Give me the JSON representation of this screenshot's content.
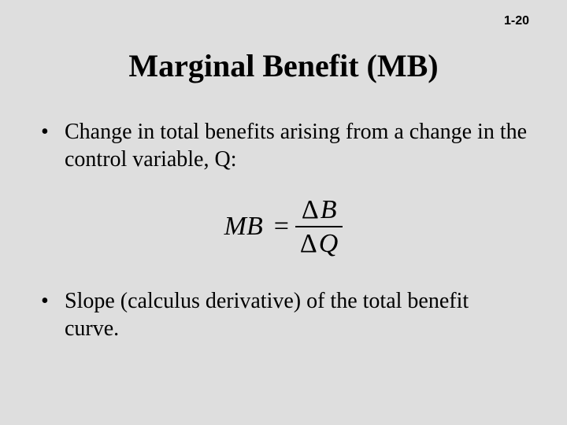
{
  "page_number": "1-20",
  "title": "Marginal Benefit (MB)",
  "bullets": [
    "Change in total benefits arising from a change in the control variable, Q:",
    "Slope (calculus derivative) of the total benefit curve."
  ],
  "formula": {
    "lhs": "MB",
    "eq": "=",
    "numerator_delta": "Δ",
    "numerator_var": "B",
    "denominator_delta": "Δ",
    "denominator_var": "Q"
  },
  "colors": {
    "background": "#dedede",
    "text": "#000000"
  },
  "fonts": {
    "title_size_pt": 40,
    "body_size_pt": 28,
    "formula_size_pt": 34,
    "pagenum_size_pt": 16
  }
}
